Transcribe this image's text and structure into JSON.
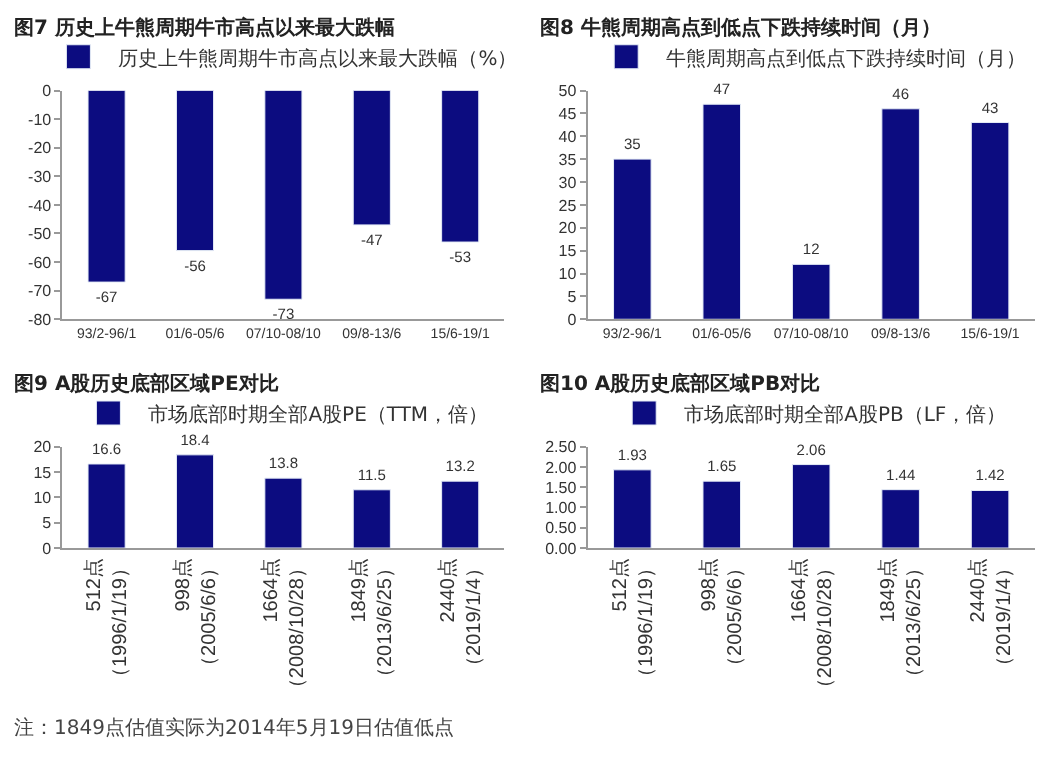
{
  "chart_data": [
    {
      "type": "bar",
      "title": "图7 历史上牛熊周期牛市高点以来最大跌幅",
      "categories": [
        "93/2-96/1",
        "01/6-05/6",
        "07/10-08/10",
        "09/8-13/6",
        "15/6-19/1"
      ],
      "series": [
        {
          "name": "历史上牛熊周期牛市高点以来最大跌幅（%）",
          "color": "#0c0c80",
          "values": [
            -67,
            -56,
            -73,
            -47,
            -53
          ]
        }
      ],
      "ylim": [
        -80,
        0
      ],
      "yticks": [
        -80,
        -70,
        -60,
        -50,
        -40,
        -30,
        -20,
        -10,
        0
      ],
      "data_labels": true,
      "legend": "top",
      "grid": false
    },
    {
      "type": "bar",
      "title": "图8 牛熊周期高点到低点下跌持续时间（月）",
      "categories": [
        "93/2-96/1",
        "01/6-05/6",
        "07/10-08/10",
        "09/8-13/6",
        "15/6-19/1"
      ],
      "series": [
        {
          "name": "牛熊周期高点到低点下跌持续时间（月）",
          "color": "#0c0c80",
          "values": [
            35,
            47,
            12,
            46,
            43
          ]
        }
      ],
      "ylim": [
        0,
        50
      ],
      "yticks": [
        0,
        5,
        10,
        15,
        20,
        25,
        30,
        35,
        40,
        45,
        50
      ],
      "data_labels": true,
      "legend": "top",
      "grid": false
    },
    {
      "type": "bar",
      "title": "图9 A股历史底部区域PE对比",
      "categories": [
        "512点（1996/1/19）",
        "998点（2005/6/6）",
        "1664点（2008/10/28）",
        "1849点（2013/6/25）",
        "2440点（2019/1/4）"
      ],
      "series": [
        {
          "name": "市场底部时期全部A股PE（TTM，倍）",
          "color": "#0c0c80",
          "values": [
            16.6,
            18.4,
            13.8,
            11.5,
            13.2
          ]
        }
      ],
      "ylim": [
        0,
        20
      ],
      "yticks": [
        0,
        5,
        10,
        15,
        20
      ],
      "data_labels": true,
      "legend": "top",
      "grid": false,
      "annotations": [
        "注：1849点估值实际为2014年5月19日估值低点"
      ]
    },
    {
      "type": "bar",
      "title": "图10 A股历史底部区域PB对比",
      "categories": [
        "512点（1996/1/19）",
        "998点（2005/6/6）",
        "1664点（2008/10/28）",
        "1849点（2013/6/25）",
        "2440点（2019/1/4）"
      ],
      "series": [
        {
          "name": "市场底部时期全部A股PB（LF，倍）",
          "color": "#0c0c80",
          "values": [
            1.93,
            1.65,
            2.06,
            1.44,
            1.42
          ]
        }
      ],
      "ylim": [
        0,
        2.5
      ],
      "yticks": [
        {
          "value": 0,
          "label": "0.00"
        },
        {
          "value": 0.5,
          "label": "0.50"
        },
        {
          "value": 1,
          "label": "1.00"
        },
        {
          "value": 1.5,
          "label": "1.50"
        },
        {
          "value": 2,
          "label": "2.00"
        },
        {
          "value": 2.5,
          "label": "2.50"
        }
      ],
      "data_labels": true,
      "legend": "top",
      "grid": false
    }
  ]
}
